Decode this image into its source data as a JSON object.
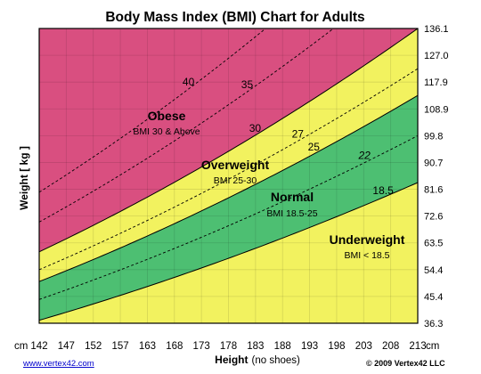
{
  "chart_data": {
    "type": "area",
    "title": "Body Mass Index (BMI) Chart for Adults",
    "ylabel": "Weight [ kg ]",
    "xlabel": "Height",
    "xlabel_suffix": "(no shoes)",
    "x_unit": "cm",
    "x_ticks": [
      "142",
      "147",
      "152",
      "157",
      "163",
      "168",
      "173",
      "178",
      "183",
      "188",
      "193",
      "198",
      "203",
      "208",
      "213"
    ],
    "y_ticks": [
      "36.3",
      "45.4",
      "54.4",
      "63.5",
      "72.6",
      "81.6",
      "90.7",
      "99.8",
      "108.9",
      "117.9",
      "127.0",
      "136.1"
    ],
    "xlim": [
      142,
      213
    ],
    "ylim": [
      36.3,
      136.1
    ],
    "zones": [
      {
        "name": "Underweight",
        "range": "BMI < 18.5",
        "bmi_min": 0,
        "bmi_max": 18.5,
        "color": "#f2f25f"
      },
      {
        "name": "Normal",
        "range": "BMI 18.5-25",
        "bmi_min": 18.5,
        "bmi_max": 25,
        "color": "#4dbf72"
      },
      {
        "name": "Overweight",
        "range": "BMI 25-30",
        "bmi_min": 25,
        "bmi_max": 30,
        "color": "#f2f25f"
      },
      {
        "name": "Obese",
        "range": "BMI 30 & Above",
        "bmi_min": 30,
        "bmi_max": 100,
        "color": "#d94f80"
      }
    ],
    "bmi_lines": [
      {
        "bmi": 18.5,
        "label": "18.5",
        "style": "solid"
      },
      {
        "bmi": 22,
        "label": "22",
        "style": "dashed"
      },
      {
        "bmi": 25,
        "label": "25",
        "style": "solid"
      },
      {
        "bmi": 27,
        "label": "27",
        "style": "dashed"
      },
      {
        "bmi": 30,
        "label": "30",
        "style": "solid"
      },
      {
        "bmi": 35,
        "label": "35",
        "style": "dashed"
      },
      {
        "bmi": 40,
        "label": "40",
        "style": "dashed"
      }
    ],
    "grid": true
  },
  "footer": {
    "link": "www.vertex42.com",
    "copyright": "© 2009 Vertex42 LLC"
  }
}
